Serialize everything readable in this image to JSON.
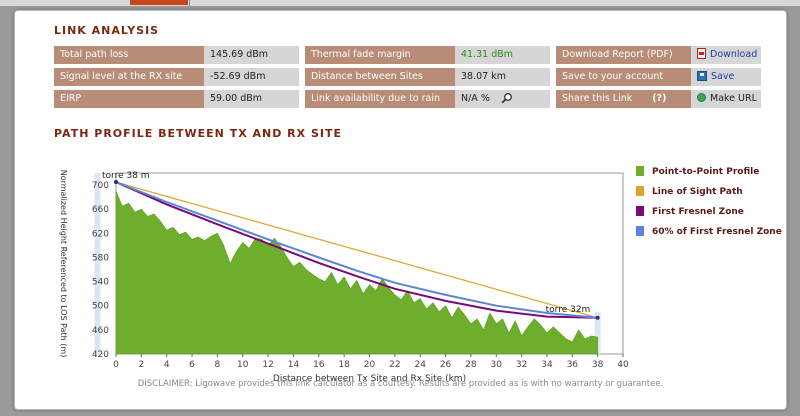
{
  "link_analysis": {
    "title": "LINK ANALYSIS",
    "col1": [
      {
        "label": "Total path loss",
        "value": "145.69 dBm"
      },
      {
        "label": "Signal level at the RX site",
        "value": "-52.69 dBm"
      },
      {
        "label": "EIRP",
        "value": "59.00 dBm"
      }
    ],
    "col2": [
      {
        "label": "Thermal fade margin",
        "value": "41.31 dBm"
      },
      {
        "label": "Distance between Sites",
        "value": "38.07 km"
      },
      {
        "label": "Link availability due to rain",
        "value": "N/A %"
      }
    ],
    "col3": [
      {
        "label": "Download Report (PDF)",
        "action": "Download",
        "icon": "pdf-icon"
      },
      {
        "label": "Save to your account",
        "action": "Save",
        "icon": "save-icon"
      },
      {
        "label": "Share this Link",
        "help": "(?)",
        "action": "Make URL",
        "icon": "url-icon"
      }
    ],
    "accent": "#2f8a1e"
  },
  "path_profile": {
    "title": "PATH PROFILE BETWEEN TX AND RX SITE",
    "disclaimer": "DISCLAIMER: Ligowave provides this link calculator as a courtesy.  Results are provided as is with no warranty or guarantee."
  },
  "chart_data": {
    "type": "area",
    "xlabel": "Distance between Tx Site and Rx Site (km)",
    "ylabel": "Normalized Height Referenced to LOS Path (m)",
    "xlim": [
      0,
      40
    ],
    "ylim": [
      420,
      720
    ],
    "x_ticks": [
      0,
      2,
      4,
      6,
      8,
      10,
      12,
      14,
      16,
      18,
      20,
      22,
      24,
      26,
      28,
      30,
      32,
      34,
      36,
      38,
      40
    ],
    "y_ticks": [
      420,
      460,
      500,
      540,
      580,
      620,
      660,
      700
    ],
    "annotations": [
      {
        "text": "torre 38 m",
        "x": 0,
        "y": 712
      },
      {
        "text": "torre 32m",
        "x": 35,
        "y": 490
      }
    ],
    "legend_position": "right",
    "series": [
      {
        "name": "Point-to-Point Profile",
        "color": "#6fad2c",
        "x": [
          0,
          0.5,
          1,
          1.5,
          2,
          2.5,
          3,
          3.5,
          4,
          4.5,
          5,
          5.5,
          6,
          6.5,
          7,
          7.5,
          8,
          8.5,
          9,
          9.5,
          10,
          10.5,
          11,
          11.5,
          12,
          12.5,
          13,
          13.5,
          14,
          14.5,
          15,
          15.5,
          16,
          16.5,
          17,
          17.5,
          18,
          18.5,
          19,
          19.5,
          20,
          20.5,
          21,
          21.5,
          22,
          22.5,
          23,
          23.5,
          24,
          24.5,
          25,
          25.5,
          26,
          26.5,
          27,
          27.5,
          28,
          28.5,
          29,
          29.5,
          30,
          30.5,
          31,
          31.5,
          32,
          32.5,
          33,
          33.5,
          34,
          34.5,
          35,
          35.5,
          36,
          36.5,
          37,
          37.5,
          38
        ],
        "values": [
          690,
          665,
          670,
          655,
          660,
          648,
          652,
          640,
          625,
          630,
          618,
          622,
          610,
          614,
          608,
          615,
          620,
          600,
          570,
          590,
          605,
          595,
          612,
          610,
          600,
          612,
          598,
          580,
          565,
          572,
          560,
          552,
          545,
          540,
          555,
          535,
          548,
          528,
          542,
          520,
          535,
          525,
          545,
          530,
          518,
          510,
          525,
          505,
          512,
          495,
          505,
          490,
          500,
          480,
          498,
          485,
          470,
          478,
          460,
          488,
          470,
          478,
          455,
          475,
          450,
          465,
          478,
          468,
          455,
          465,
          455,
          445,
          440,
          460,
          445,
          450,
          448
        ],
        "fill": true
      },
      {
        "name": "Line of Sight Path",
        "color": "#e0a32c",
        "x": [
          0,
          38
        ],
        "values": [
          705,
          480
        ]
      },
      {
        "name": "First Fresnel Zone",
        "color": "#7a0a7a",
        "x": [
          0,
          4,
          8,
          12,
          16,
          19,
          22,
          26,
          30,
          34,
          38
        ],
        "values": [
          705,
          668,
          635,
          603,
          571,
          549,
          528,
          508,
          492,
          482,
          480
        ]
      },
      {
        "name": "60% of First Fresnel Zone",
        "color": "#5b86d6",
        "x": [
          0,
          4,
          8,
          12,
          16,
          19,
          22,
          26,
          30,
          34,
          38
        ],
        "values": [
          705,
          672,
          641,
          610,
          580,
          558,
          538,
          518,
          500,
          488,
          480
        ]
      }
    ]
  }
}
